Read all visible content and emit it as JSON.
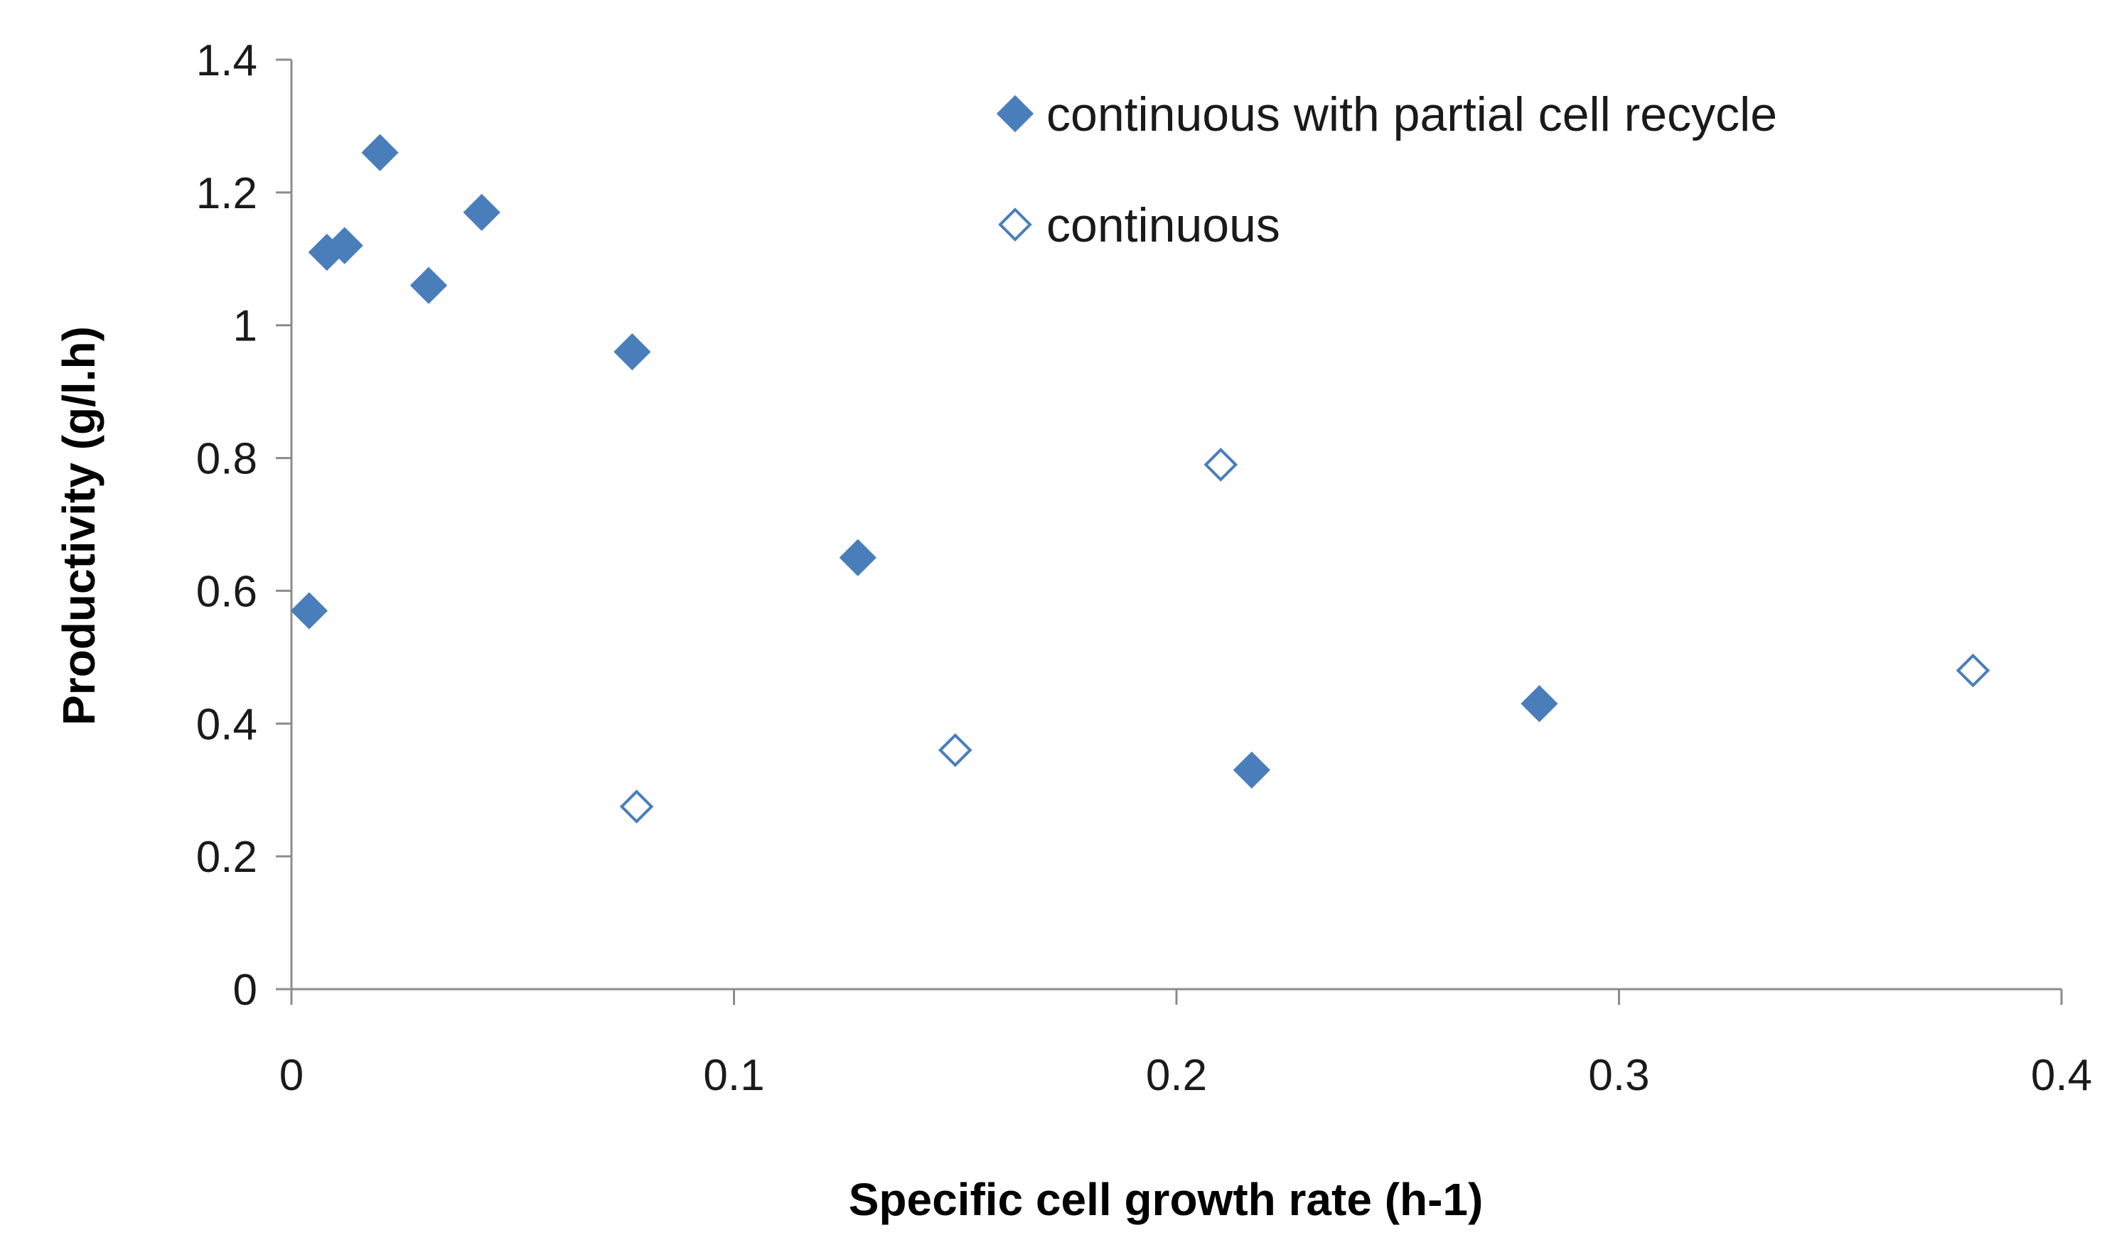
{
  "chart_data": {
    "type": "scatter",
    "title": "",
    "xlabel": "Specific cell growth rate (h-1)",
    "ylabel": "Productivity (g/l.h)",
    "xlim": [
      0,
      0.4
    ],
    "ylim": [
      0,
      1.4
    ],
    "x_ticks": [
      "0",
      "0.1",
      "0.2",
      "0.3",
      "0.4"
    ],
    "y_ticks": [
      "0",
      "0.2",
      "0.4",
      "0.6",
      "0.8",
      "1",
      "1.2",
      "1.4"
    ],
    "grid": false,
    "legend_position": "top-right",
    "series": [
      {
        "name": "continuous with partial cell recycle",
        "marker": "filled-diamond",
        "color": "#4a7ebb",
        "points": [
          {
            "x": 0.004,
            "y": 0.57
          },
          {
            "x": 0.008,
            "y": 1.11
          },
          {
            "x": 0.012,
            "y": 1.12
          },
          {
            "x": 0.02,
            "y": 1.26
          },
          {
            "x": 0.031,
            "y": 1.06
          },
          {
            "x": 0.043,
            "y": 1.17
          },
          {
            "x": 0.077,
            "y": 0.96
          },
          {
            "x": 0.128,
            "y": 0.65
          },
          {
            "x": 0.217,
            "y": 0.33
          },
          {
            "x": 0.282,
            "y": 0.43
          }
        ]
      },
      {
        "name": "continuous",
        "marker": "hollow-diamond",
        "color": "#4a7ebb",
        "points": [
          {
            "x": 0.078,
            "y": 0.275
          },
          {
            "x": 0.15,
            "y": 0.36
          },
          {
            "x": 0.21,
            "y": 0.79
          },
          {
            "x": 0.38,
            "y": 0.48
          }
        ]
      }
    ]
  }
}
